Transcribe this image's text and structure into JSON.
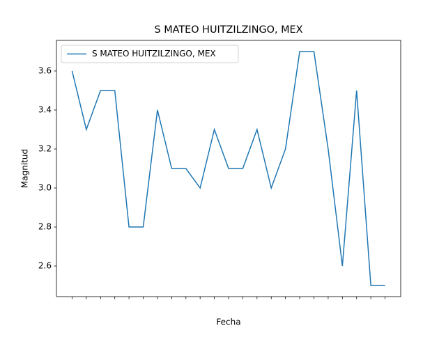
{
  "chart_data": {
    "type": "line",
    "title": "S MATEO HUITZILZINGO, MEX",
    "x_label": "Fecha",
    "y_label": "Magnitud",
    "categories": [
      null,
      null,
      null,
      null,
      null,
      null,
      null,
      null,
      null,
      null,
      null,
      null,
      null,
      null,
      null,
      null,
      null,
      null,
      null,
      null,
      null,
      null,
      null
    ],
    "series": [
      {
        "name": "S MATEO HUITZILZINGO, MEX",
        "color": "#1f77b4",
        "values": [
          3.6,
          3.3,
          3.5,
          3.5,
          2.8,
          2.8,
          3.4,
          3.1,
          3.1,
          3.0,
          3.3,
          3.1,
          3.1,
          3.3,
          3.0,
          3.2,
          3.7,
          3.7,
          3.2,
          2.6,
          3.5,
          2.5,
          2.5
        ]
      }
    ],
    "ylim": [
      2.443,
      3.757
    ],
    "yticks": [
      2.6,
      2.8,
      {
        "value": 3.0,
        "label": "3.0"
      },
      3.2,
      3.4,
      3.6
    ],
    "legend": "upper left"
  }
}
